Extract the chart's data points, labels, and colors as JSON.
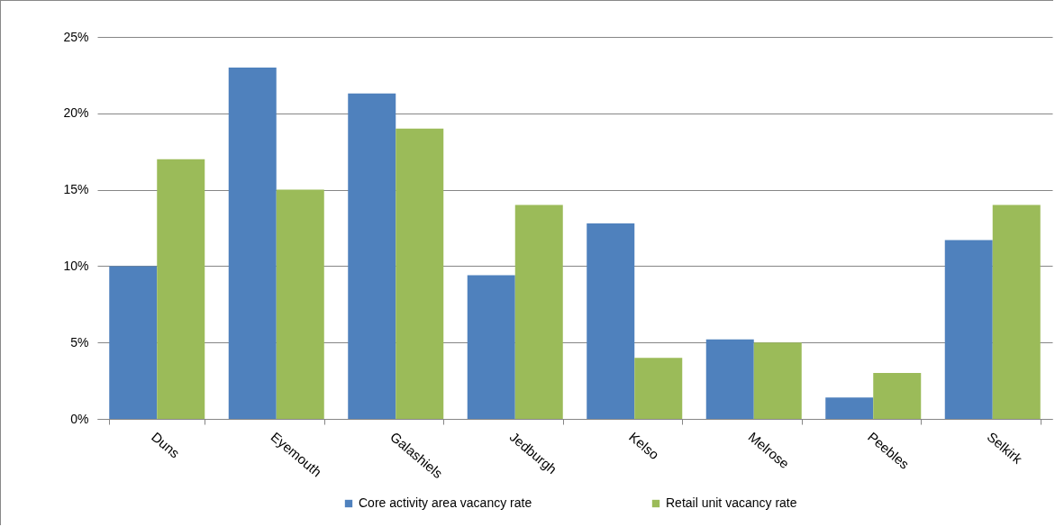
{
  "chart_data": {
    "type": "bar",
    "categories": [
      "Duns",
      "Eyemouth",
      "Galashiels",
      "Jedburgh",
      "Kelso",
      "Melrose",
      "Peebles",
      "Selkirk"
    ],
    "series": [
      {
        "name": "Core activity area vacancy rate",
        "color": "#4f81bd",
        "values": [
          10,
          23,
          21.3,
          9.4,
          12.8,
          5.2,
          1.4,
          11.7
        ]
      },
      {
        "name": "Retail unit vacancy rate",
        "color": "#9bbb59",
        "values": [
          17,
          15,
          19,
          14,
          4,
          5,
          3,
          14
        ]
      }
    ],
    "ylim": [
      0,
      25
    ],
    "yticks": [
      {
        "value": 0,
        "label": "0%"
      },
      {
        "value": 5,
        "label": "5%"
      },
      {
        "value": 10,
        "label": "10%"
      },
      {
        "value": 15,
        "label": "15%"
      },
      {
        "value": 20,
        "label": "20%"
      },
      {
        "value": 25,
        "label": "25%"
      }
    ],
    "grid": "y",
    "legend": "bottom"
  }
}
